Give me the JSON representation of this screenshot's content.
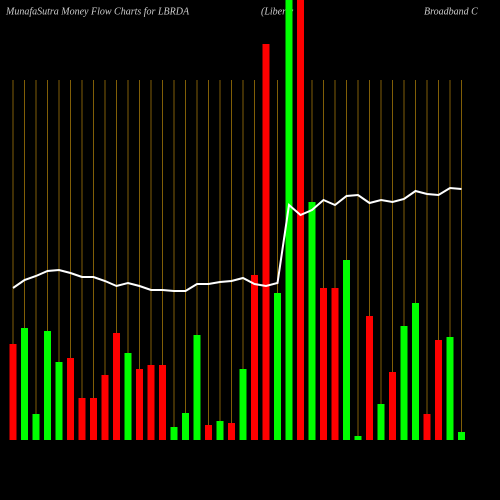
{
  "chart_data": {
    "type": "bar",
    "title_parts": [
      "MunafaSutra  Money Flow  Charts for LBRDA",
      "(Liberty",
      "Broadband C"
    ],
    "categories": [
      null,
      null,
      null,
      null,
      null,
      null,
      null,
      null,
      null,
      null,
      null,
      null,
      null,
      null,
      null,
      null,
      null,
      null,
      null,
      null,
      null,
      null,
      null,
      null,
      null,
      null,
      null,
      null,
      null,
      null,
      null,
      null,
      null,
      null,
      null,
      null,
      null,
      null,
      null,
      null
    ],
    "ylim": [
      0,
      440
    ],
    "grid": true,
    "grid_color": "#b8860b",
    "series": [
      {
        "type": "bar",
        "colors": [
          "#ff0000",
          "#00ff00",
          "#00ff00",
          "#00ff00",
          "#00ff00",
          "#ff0000",
          "#ff0000",
          "#ff0000",
          "#ff0000",
          "#ff0000",
          "#00ff00",
          "#ff0000",
          "#ff0000",
          "#ff0000",
          "#00ff00",
          "#00ff00",
          "#00ff00",
          "#ff0000",
          "#00ff00",
          "#ff0000",
          "#00ff00",
          "#ff0000",
          "#ff0000",
          "#00ff00",
          "#00ff00",
          "#ff0000",
          "#00ff00",
          "#ff0000",
          "#ff0000",
          "#00ff00",
          "#00ff00",
          "#ff0000",
          "#00ff00",
          "#ff0000",
          "#00ff00",
          "#00ff00",
          "#ff0000",
          "#ff0000",
          "#00ff00",
          "#00ff00"
        ],
        "values": [
          96,
          112,
          26,
          109,
          78,
          82,
          42,
          42,
          65,
          107,
          87,
          71,
          75,
          75,
          13,
          27,
          105,
          15,
          19,
          17,
          71,
          165,
          396,
          147,
          440,
          440,
          238,
          152,
          152,
          180,
          4,
          124,
          36,
          68,
          114,
          137,
          26,
          100,
          103,
          8
        ]
      },
      {
        "type": "line",
        "color": "#ffffff",
        "values": [
          152,
          160,
          164,
          169,
          170,
          167,
          163,
          163,
          159,
          154,
          157,
          154,
          150,
          150,
          149,
          149,
          156,
          156,
          158,
          159,
          162,
          156,
          154,
          157,
          235,
          225,
          230,
          240,
          235,
          244,
          245,
          237,
          240,
          238,
          241,
          249,
          246,
          245,
          252,
          251
        ]
      }
    ]
  }
}
